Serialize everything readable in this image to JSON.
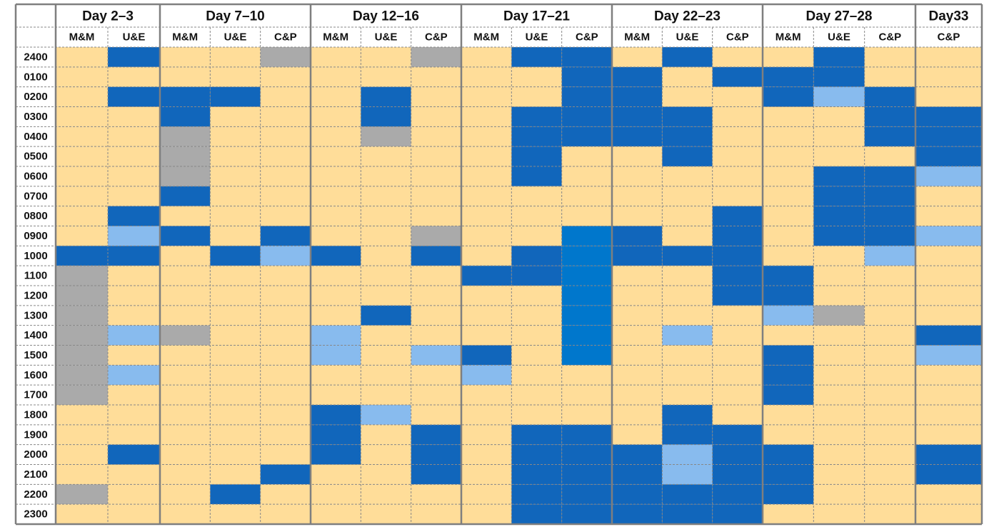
{
  "groups": [
    {
      "title": "Day 2–3",
      "columns": [
        "M&M",
        "U&E"
      ]
    },
    {
      "title": "Day 7–10",
      "columns": [
        "M&M",
        "U&E",
        "C&P"
      ]
    },
    {
      "title": "Day 12–16",
      "columns": [
        "M&M",
        "U&E",
        "C&P"
      ]
    },
    {
      "title": "Day 17–21",
      "columns": [
        "M&M",
        "U&E",
        "C&P"
      ]
    },
    {
      "title": "Day 22–23",
      "columns": [
        "M&M",
        "U&E",
        "C&P"
      ]
    },
    {
      "title": "Day 27–28",
      "columns": [
        "M&M",
        "U&E",
        "C&P"
      ]
    },
    {
      "title": "Day33",
      "columns": [
        "C&P"
      ]
    }
  ],
  "rows": [
    {
      "label": "2400",
      "cells": [
        "#fd9",
        "#16b",
        "#fd9",
        "#fd9",
        "#aaa",
        "#fd9",
        "#fd9",
        "#aaa",
        "#fd9",
        "#16b",
        "#16b",
        "#fd9",
        "#16b",
        "#fd9",
        "#fd9",
        "#16b",
        "#fd9",
        "#fd9"
      ]
    },
    {
      "label": "0100",
      "cells": [
        "#fd9",
        "#fd9",
        "#fd9",
        "#fd9",
        "#fd9",
        "#fd9",
        "#fd9",
        "#fd9",
        "#fd9",
        "#fd9",
        "#16b",
        "#16b",
        "#fd9",
        "#16b",
        "#16b",
        "#16b",
        "#fd9",
        "#fd9"
      ]
    },
    {
      "label": "0200",
      "cells": [
        "#fd9",
        "#16b",
        "#16b",
        "#16b",
        "#fd9",
        "#fd9",
        "#16b",
        "#fd9",
        "#fd9",
        "#fd9",
        "#16b",
        "#16b",
        "#fd9",
        "#fd9",
        "#16b",
        "#8be",
        "#16b",
        "#fd9"
      ]
    },
    {
      "label": "0300",
      "cells": [
        "#fd9",
        "#fd9",
        "#16b",
        "#fd9",
        "#fd9",
        "#fd9",
        "#16b",
        "#fd9",
        "#fd9",
        "#16b",
        "#16b",
        "#16b",
        "#16b",
        "#fd9",
        "#fd9",
        "#fd9",
        "#16b",
        "#16b"
      ]
    },
    {
      "label": "0400",
      "cells": [
        "#fd9",
        "#fd9",
        "#aaa",
        "#fd9",
        "#fd9",
        "#fd9",
        "#aaa",
        "#fd9",
        "#fd9",
        "#16b",
        "#16b",
        "#16b",
        "#16b",
        "#fd9",
        "#fd9",
        "#fd9",
        "#16b",
        "#16b"
      ]
    },
    {
      "label": "0500",
      "cells": [
        "#fd9",
        "#fd9",
        "#aaa",
        "#fd9",
        "#fd9",
        "#fd9",
        "#fd9",
        "#fd9",
        "#fd9",
        "#16b",
        "#fd9",
        "#fd9",
        "#16b",
        "#fd9",
        "#fd9",
        "#fd9",
        "#fd9",
        "#16b"
      ]
    },
    {
      "label": "0600",
      "cells": [
        "#fd9",
        "#fd9",
        "#aaa",
        "#fd9",
        "#fd9",
        "#fd9",
        "#fd9",
        "#fd9",
        "#fd9",
        "#16b",
        "#fd9",
        "#fd9",
        "#fd9",
        "#fd9",
        "#fd9",
        "#16b",
        "#16b",
        "#8be"
      ]
    },
    {
      "label": "0700",
      "cells": [
        "#fd9",
        "#fd9",
        "#16b",
        "#fd9",
        "#fd9",
        "#fd9",
        "#fd9",
        "#fd9",
        "#fd9",
        "#fd9",
        "#fd9",
        "#fd9",
        "#fd9",
        "#fd9",
        "#fd9",
        "#16b",
        "#16b",
        "#fd9"
      ]
    },
    {
      "label": "0800",
      "cells": [
        "#fd9",
        "#16b",
        "#fd9",
        "#fd9",
        "#fd9",
        "#fd9",
        "#fd9",
        "#fd9",
        "#fd9",
        "#fd9",
        "#fd9",
        "#fd9",
        "#fd9",
        "#16b",
        "#fd9",
        "#16b",
        "#16b",
        "#fd9"
      ]
    },
    {
      "label": "0900",
      "cells": [
        "#fd9",
        "#8be",
        "#16b",
        "#fd9",
        "#16b",
        "#fd9",
        "#fd9",
        "#aaa",
        "#fd9",
        "#fd9",
        "#07c",
        "#16b",
        "#fd9",
        "#16b",
        "#fd9",
        "#16b",
        "#16b",
        "#8be"
      ]
    },
    {
      "label": "1000",
      "cells": [
        "#16b",
        "#16b",
        "#fd9",
        "#16b",
        "#8be",
        "#16b",
        "#fd9",
        "#16b",
        "#fd9",
        "#16b",
        "#07c",
        "#16b",
        "#16b",
        "#16b",
        "#fd9",
        "#fd9",
        "#8be",
        "#fd9"
      ]
    },
    {
      "label": "1100",
      "cells": [
        "#aaa",
        "#fd9",
        "#fd9",
        "#fd9",
        "#fd9",
        "#fd9",
        "#fd9",
        "#fd9",
        "#16b",
        "#16b",
        "#07c",
        "#fd9",
        "#fd9",
        "#16b",
        "#16b",
        "#fd9",
        "#fd9",
        "#fd9"
      ]
    },
    {
      "label": "1200",
      "cells": [
        "#aaa",
        "#fd9",
        "#fd9",
        "#fd9",
        "#fd9",
        "#fd9",
        "#fd9",
        "#fd9",
        "#fd9",
        "#fd9",
        "#07c",
        "#fd9",
        "#fd9",
        "#16b",
        "#16b",
        "#fd9",
        "#fd9",
        "#fd9"
      ]
    },
    {
      "label": "1300",
      "cells": [
        "#aaa",
        "#fd9",
        "#fd9",
        "#fd9",
        "#fd9",
        "#fd9",
        "#16b",
        "#fd9",
        "#fd9",
        "#fd9",
        "#07c",
        "#fd9",
        "#fd9",
        "#fd9",
        "#8be",
        "#aaa",
        "#fd9",
        "#fd9"
      ]
    },
    {
      "label": "1400",
      "cells": [
        "#aaa",
        "#8be",
        "#aaa",
        "#fd9",
        "#fd9",
        "#8be",
        "#fd9",
        "#fd9",
        "#fd9",
        "#fd9",
        "#07c",
        "#fd9",
        "#8be",
        "#fd9",
        "#fd9",
        "#fd9",
        "#fd9",
        "#16b"
      ]
    },
    {
      "label": "1500",
      "cells": [
        "#aaa",
        "#fd9",
        "#fd9",
        "#fd9",
        "#fd9",
        "#8be",
        "#fd9",
        "#8be",
        "#16b",
        "#fd9",
        "#07c",
        "#fd9",
        "#fd9",
        "#fd9",
        "#16b",
        "#fd9",
        "#fd9",
        "#8be"
      ]
    },
    {
      "label": "1600",
      "cells": [
        "#aaa",
        "#8be",
        "#fd9",
        "#fd9",
        "#fd9",
        "#fd9",
        "#fd9",
        "#fd9",
        "#8be",
        "#fd9",
        "#fd9",
        "#fd9",
        "#fd9",
        "#fd9",
        "#16b",
        "#fd9",
        "#fd9",
        "#fd9"
      ]
    },
    {
      "label": "1700",
      "cells": [
        "#aaa",
        "#fd9",
        "#fd9",
        "#fd9",
        "#fd9",
        "#fd9",
        "#fd9",
        "#fd9",
        "#fd9",
        "#fd9",
        "#fd9",
        "#fd9",
        "#fd9",
        "#fd9",
        "#16b",
        "#fd9",
        "#fd9",
        "#fd9"
      ]
    },
    {
      "label": "1800",
      "cells": [
        "#fd9",
        "#fd9",
        "#fd9",
        "#fd9",
        "#fd9",
        "#16b",
        "#8be",
        "#fd9",
        "#fd9",
        "#fd9",
        "#fd9",
        "#fd9",
        "#16b",
        "#fd9",
        "#fd9",
        "#fd9",
        "#fd9",
        "#fd9"
      ]
    },
    {
      "label": "1900",
      "cells": [
        "#fd9",
        "#fd9",
        "#fd9",
        "#fd9",
        "#fd9",
        "#16b",
        "#fd9",
        "#16b",
        "#fd9",
        "#16b",
        "#16b",
        "#fd9",
        "#16b",
        "#16b",
        "#fd9",
        "#fd9",
        "#fd9",
        "#fd9"
      ]
    },
    {
      "label": "2000",
      "cells": [
        "#fd9",
        "#16b",
        "#fd9",
        "#fd9",
        "#fd9",
        "#16b",
        "#fd9",
        "#16b",
        "#fd9",
        "#16b",
        "#16b",
        "#16b",
        "#8be",
        "#16b",
        "#16b",
        "#fd9",
        "#fd9",
        "#16b"
      ]
    },
    {
      "label": "2100",
      "cells": [
        "#fd9",
        "#fd9",
        "#fd9",
        "#fd9",
        "#16b",
        "#fd9",
        "#fd9",
        "#16b",
        "#fd9",
        "#16b",
        "#16b",
        "#16b",
        "#8be",
        "#16b",
        "#16b",
        "#fd9",
        "#fd9",
        "#16b"
      ]
    },
    {
      "label": "2200",
      "cells": [
        "#aaa",
        "#fd9",
        "#fd9",
        "#16b",
        "#fd9",
        "#fd9",
        "#fd9",
        "#fd9",
        "#fd9",
        "#16b",
        "#16b",
        "#16b",
        "#16b",
        "#16b",
        "#16b",
        "#fd9",
        "#fd9",
        "#fd9"
      ]
    },
    {
      "label": "2300",
      "cells": [
        "#fd9",
        "#fd9",
        "#fd9",
        "#fd9",
        "#fd9",
        "#fd9",
        "#fd9",
        "#fd9",
        "#fd9",
        "#16b",
        "#16b",
        "#16b",
        "#16b",
        "#16b",
        "#fd9",
        "#fd9",
        "#fd9",
        "#fd9"
      ]
    }
  ]
}
